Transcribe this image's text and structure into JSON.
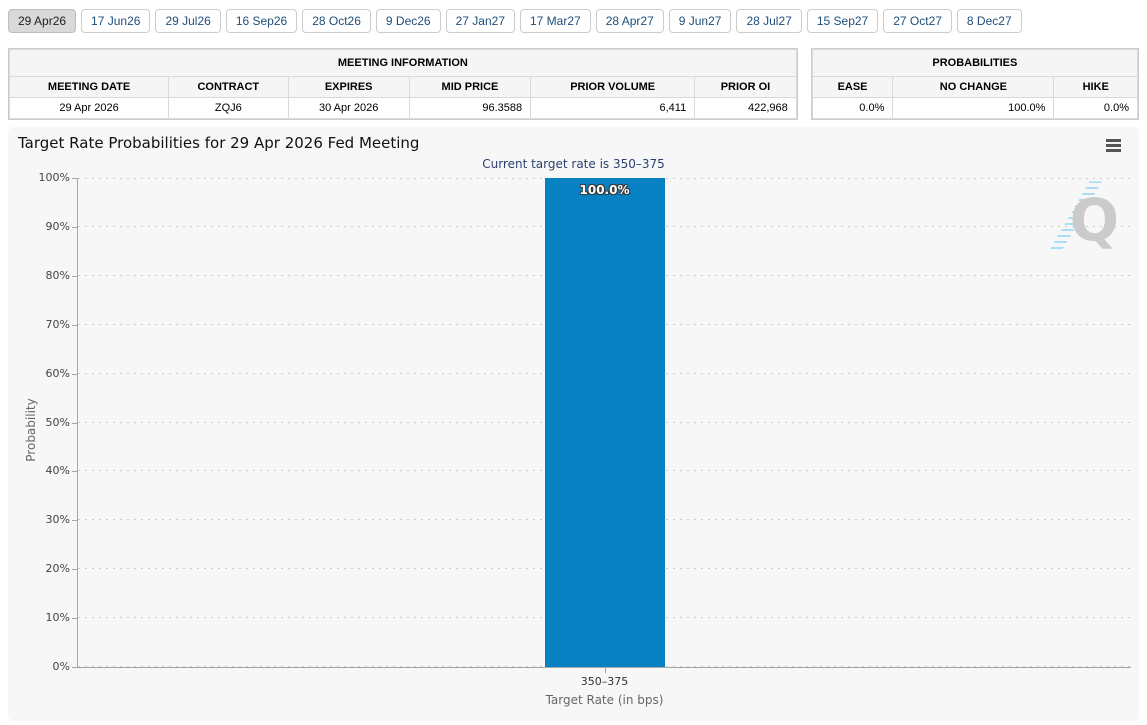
{
  "tabs": [
    "29 Apr26",
    "17 Jun26",
    "29 Jul26",
    "16 Sep26",
    "28 Oct26",
    "9 Dec26",
    "27 Jan27",
    "17 Mar27",
    "28 Apr27",
    "9 Jun27",
    "28 Jul27",
    "15 Sep27",
    "27 Oct27",
    "8 Dec27"
  ],
  "selected_tab": "29 Apr26",
  "meeting_info": {
    "title": "MEETING INFORMATION",
    "headers": [
      "MEETING DATE",
      "CONTRACT",
      "EXPIRES",
      "MID PRICE",
      "PRIOR VOLUME",
      "PRIOR OI"
    ],
    "row": [
      "29 Apr 2026",
      "ZQJ6",
      "30 Apr 2026",
      "96.3588",
      "6,411",
      "422,968"
    ]
  },
  "probabilities": {
    "title": "PROBABILITIES",
    "headers": [
      "EASE",
      "NO CHANGE",
      "HIKE"
    ],
    "row": [
      "0.0%",
      "100.0%",
      "0.0%"
    ]
  },
  "chart": {
    "menu_icon": "hamburger-icon",
    "watermark_letter": "Q"
  },
  "chart_data": {
    "type": "bar",
    "title": "Target Rate Probabilities for 29 Apr 2026 Fed Meeting",
    "subtitle": "Current target rate is 350–375",
    "categories": [
      "350–375"
    ],
    "values": [
      100.0
    ],
    "bar_labels": [
      "100.0%"
    ],
    "xlabel": "Target Rate (in bps)",
    "ylabel": "Probability",
    "ylim": [
      0,
      100
    ],
    "ytick_step": 10,
    "ytick_suffix": "%",
    "grid": "dotted-horizontal",
    "legend": "none",
    "bar_color": "#0781c1"
  }
}
